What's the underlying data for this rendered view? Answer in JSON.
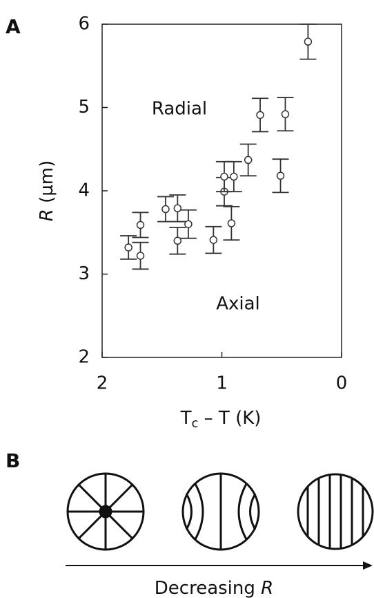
{
  "chart_data": {
    "type": "scatter",
    "panel_label": "A",
    "xlabel": {
      "main": "T",
      "sub": "c",
      "rest": " – T (K)"
    },
    "ylabel": {
      "symbol": "R",
      "rest": " (µm)"
    },
    "annotations": [
      "Radial",
      "Axial"
    ],
    "xlim": [
      2,
      0
    ],
    "xticks": [
      2,
      1,
      0
    ],
    "ylim": [
      2,
      6
    ],
    "yticks": [
      2,
      3,
      4,
      5,
      6
    ],
    "color": "#333333",
    "x": [
      1.78,
      1.68,
      1.68,
      1.47,
      1.37,
      1.37,
      1.28,
      1.07,
      0.98,
      0.98,
      0.92,
      0.9,
      0.78,
      0.68,
      0.51,
      0.47,
      0.28
    ],
    "values": [
      3.32,
      3.59,
      3.22,
      3.78,
      3.79,
      3.4,
      3.6,
      3.41,
      3.99,
      4.17,
      3.61,
      4.17,
      4.37,
      4.91,
      4.18,
      4.92,
      5.79
    ],
    "errors": [
      0.14,
      0.15,
      0.16,
      0.15,
      0.16,
      0.16,
      0.17,
      0.16,
      0.17,
      0.18,
      0.2,
      0.18,
      0.19,
      0.2,
      0.2,
      0.2,
      0.21
    ]
  },
  "diagram": {
    "panel_label": "B",
    "caption": {
      "text": "Decreasing ",
      "symbol": "R"
    }
  }
}
